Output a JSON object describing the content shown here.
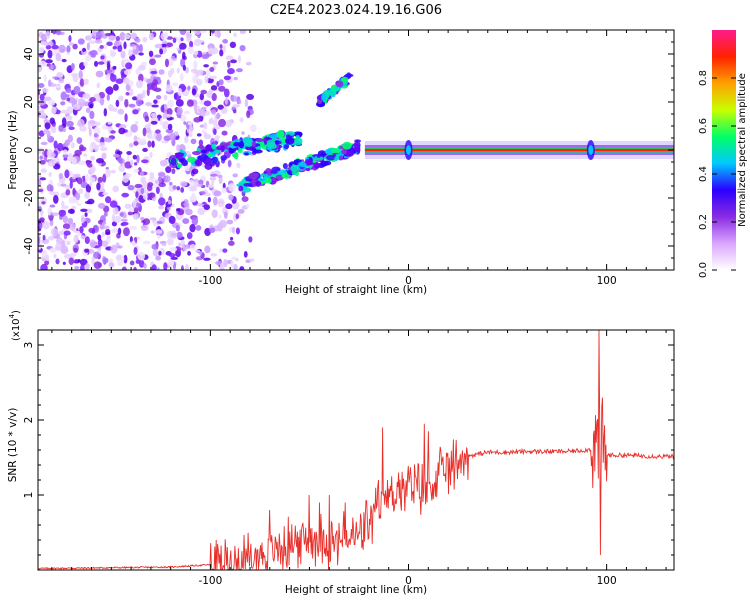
{
  "title": "C2E4.2023.024.19.16.G06",
  "chart_data": [
    {
      "type": "heatmap",
      "xlabel": "Height of straight line (km)",
      "ylabel": "Frequency (Hz)",
      "xlim": [
        -187,
        134
      ],
      "ylim": [
        -50,
        50
      ],
      "x_ticks": [
        -100,
        0,
        100
      ],
      "y_ticks": [
        -40,
        -20,
        0,
        20,
        40
      ],
      "x_tick_labels": [
        "-100",
        "0",
        "100"
      ],
      "y_tick_labels": [
        "-40",
        "-20",
        "0",
        "20",
        "40"
      ],
      "colorbar": {
        "label": "Normalized spectral amplitude",
        "range": [
          0,
          1
        ],
        "ticks": [
          0,
          0.2,
          0.4,
          0.6,
          0.8
        ],
        "tick_labels": [
          "0.0",
          "0.2",
          "0.4",
          "0.6",
          "0.8"
        ],
        "colors": [
          "#ffffff",
          "#d9a6ff",
          "#8a2be2",
          "#2a00ff",
          "#00c8ff",
          "#00ff66",
          "#c8ff00",
          "#ffa000",
          "#ff2200",
          "#ff1a8c"
        ]
      },
      "features": {
        "noise_region_x": [
          -187,
          -100
        ],
        "rising_branch": [
          [
            -120,
            -5
          ],
          [
            -90,
            0
          ],
          [
            -70,
            3
          ],
          [
            -55,
            5
          ]
        ],
        "descending_branch": [
          [
            -85,
            -15
          ],
          [
            -60,
            -8
          ],
          [
            -40,
            -3
          ],
          [
            -25,
            2
          ]
        ],
        "upper_streak": [
          [
            -45,
            20
          ],
          [
            -30,
            30
          ]
        ],
        "carrier_line_x": [
          -22,
          134
        ],
        "carrier_line_freq": 0,
        "bursts_x": [
          0,
          92
        ]
      }
    },
    {
      "type": "line",
      "xlabel": "Height of straight line (km)",
      "ylabel": "SNR (10 * v/v)",
      "y_multiplier_label": "(x10",
      "y_multiplier_exp": "4",
      "y_multiplier_close": ")",
      "xlim": [
        -187,
        134
      ],
      "ylim": [
        0,
        3.2
      ],
      "x_ticks": [
        -100,
        0,
        100
      ],
      "y_ticks": [
        1,
        2,
        3
      ],
      "x_tick_labels": [
        "-100",
        "0",
        "100"
      ],
      "y_tick_labels": [
        "1",
        "2",
        "3"
      ],
      "color": "#e8302b",
      "series_points": [
        [
          -187,
          0.02
        ],
        [
          -150,
          0.03
        ],
        [
          -120,
          0.04
        ],
        [
          -100,
          0.07
        ],
        [
          -90,
          0.1
        ],
        [
          -80,
          0.15
        ],
        [
          -70,
          0.25
        ],
        [
          -60,
          0.35
        ],
        [
          -50,
          0.4
        ],
        [
          -45,
          0.45
        ],
        [
          -40,
          0.35
        ],
        [
          -35,
          0.4
        ],
        [
          -30,
          0.4
        ],
        [
          -25,
          0.45
        ],
        [
          -20,
          0.6
        ],
        [
          -15,
          0.8
        ],
        [
          -10,
          1.0
        ],
        [
          -5,
          1.05
        ],
        [
          0,
          1.1
        ],
        [
          5,
          1.05
        ],
        [
          10,
          1.1
        ],
        [
          15,
          1.25
        ],
        [
          20,
          1.35
        ],
        [
          25,
          1.45
        ],
        [
          30,
          1.52
        ],
        [
          40,
          1.57
        ],
        [
          50,
          1.57
        ],
        [
          60,
          1.58
        ],
        [
          70,
          1.58
        ],
        [
          80,
          1.58
        ],
        [
          90,
          1.6
        ],
        [
          93,
          1.62
        ],
        [
          95,
          1.7
        ],
        [
          100,
          1.53
        ],
        [
          110,
          1.53
        ],
        [
          120,
          1.52
        ],
        [
          134,
          1.51
        ]
      ],
      "spikes": [
        [
          -70,
          0.8
        ],
        [
          -50,
          1.0
        ],
        [
          -45,
          0.9
        ],
        [
          -40,
          1.0
        ],
        [
          -32,
          0.9
        ],
        [
          -28,
          0.7
        ],
        [
          -15,
          1.2
        ],
        [
          -13,
          1.9
        ],
        [
          -5,
          1.3
        ],
        [
          5,
          1.4
        ],
        [
          8,
          1.95
        ],
        [
          10,
          1.85
        ],
        [
          96,
          3.2
        ],
        [
          97,
          0.2
        ],
        [
          98,
          2.3
        ]
      ]
    }
  ]
}
